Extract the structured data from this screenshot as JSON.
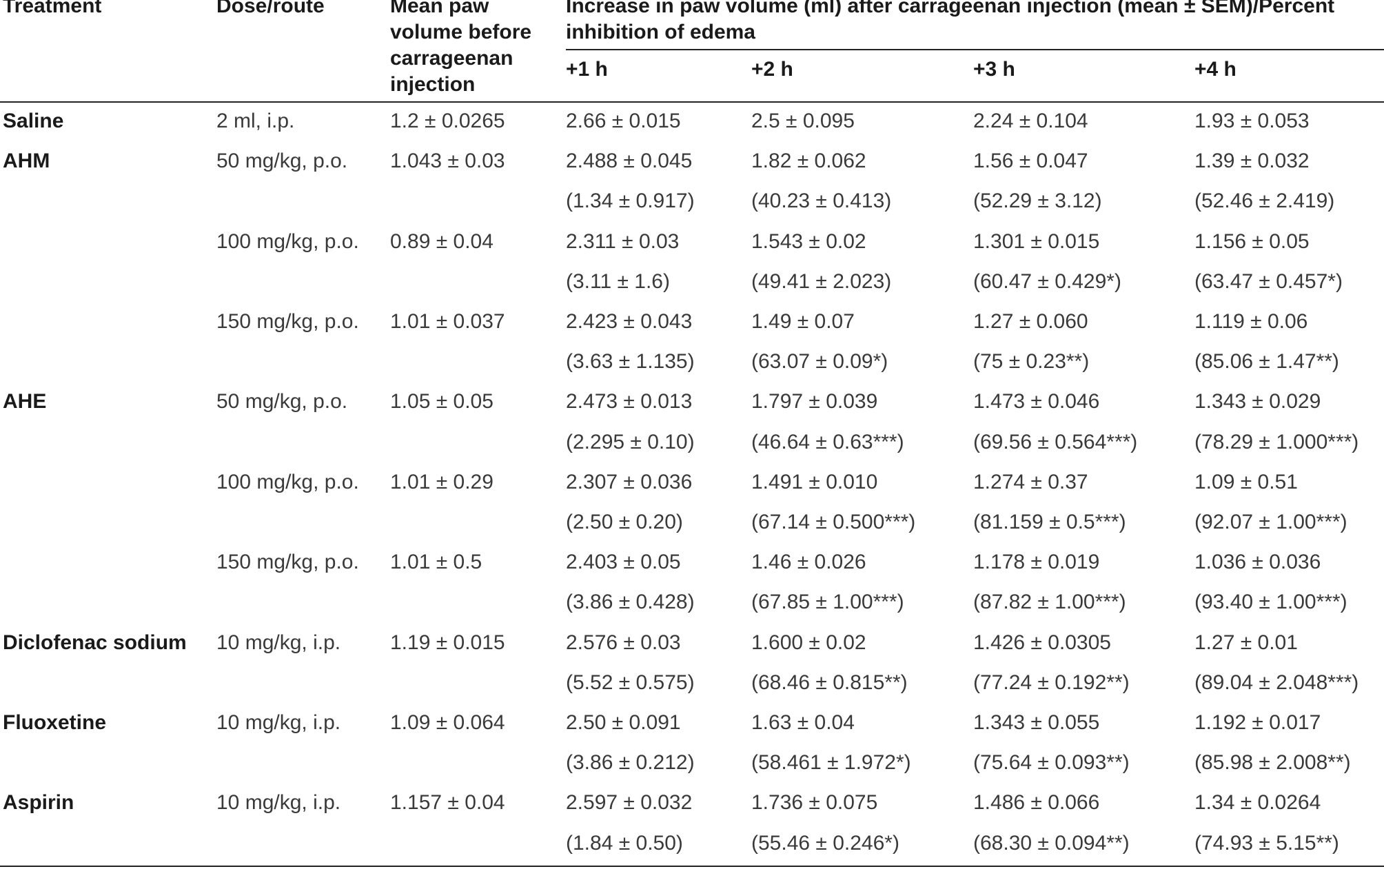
{
  "header": {
    "treatment": "Treatment",
    "dose_route": "Dose/route",
    "mean_paw_volume": "Mean paw volume before carrageenan injection",
    "increase_title": "Increase in paw volume (ml) after carrageenan injection (mean ± SEM)/Percent inhibition of edema",
    "time_points": [
      "+1 h",
      "+2 h",
      "+3 h",
      "+4 h"
    ]
  },
  "rows": [
    {
      "treatment": "Saline",
      "dose": "2 ml, i.p.",
      "baseline": "1.2 ± 0.0265",
      "values": [
        "2.66 ± 0.015",
        "2.5 ± 0.095",
        "2.24 ± 0.104",
        "1.93 ± 0.053"
      ]
    },
    {
      "treatment": "AHM",
      "dose": "50 mg/kg, p.o.",
      "baseline": "1.043 ± 0.03",
      "values": [
        "2.488 ± 0.045",
        "1.82 ± 0.062",
        "1.56 ± 0.047",
        "1.39 ± 0.032"
      ]
    },
    {
      "treatment": "",
      "dose": "",
      "baseline": "",
      "values": [
        "(1.34 ± 0.917)",
        "(40.23 ± 0.413)",
        "(52.29 ± 3.12)",
        "(52.46 ± 2.419)"
      ]
    },
    {
      "treatment": "",
      "dose": "100 mg/kg, p.o.",
      "baseline": "0.89 ± 0.04",
      "values": [
        "2.311 ± 0.03",
        "1.543 ± 0.02",
        "1.301 ± 0.015",
        "1.156 ± 0.05"
      ]
    },
    {
      "treatment": "",
      "dose": "",
      "baseline": "",
      "values": [
        "(3.11 ± 1.6)",
        "(49.41 ± 2.023)",
        "(60.47 ± 0.429*)",
        "(63.47 ± 0.457*)"
      ]
    },
    {
      "treatment": "",
      "dose": "150 mg/kg, p.o.",
      "baseline": "1.01 ± 0.037",
      "values": [
        "2.423 ± 0.043",
        "1.49 ± 0.07",
        "1.27 ± 0.060",
        "1.119 ± 0.06"
      ]
    },
    {
      "treatment": "",
      "dose": "",
      "baseline": "",
      "values": [
        "(3.63 ± 1.135)",
        "(63.07 ± 0.09*)",
        "(75 ± 0.23**)",
        "(85.06 ± 1.47**)"
      ]
    },
    {
      "treatment": "AHE",
      "dose": "50 mg/kg, p.o.",
      "baseline": "1.05 ± 0.05",
      "values": [
        "2.473 ± 0.013",
        "1.797 ± 0.039",
        "1.473 ± 0.046",
        "1.343 ± 0.029"
      ]
    },
    {
      "treatment": "",
      "dose": "",
      "baseline": "",
      "values": [
        "(2.295 ± 0.10)",
        "(46.64 ± 0.63***)",
        "(69.56 ± 0.564***)",
        "(78.29 ± 1.000***)"
      ]
    },
    {
      "treatment": "",
      "dose": "100 mg/kg, p.o.",
      "baseline": "1.01 ± 0.29",
      "values": [
        "2.307 ± 0.036",
        "1.491 ± 0.010",
        "1.274 ± 0.37",
        "1.09 ± 0.51"
      ]
    },
    {
      "treatment": "",
      "dose": "",
      "baseline": "",
      "values": [
        "(2.50 ± 0.20)",
        "(67.14 ± 0.500***)",
        "(81.159 ± 0.5***)",
        "(92.07 ± 1.00***)"
      ]
    },
    {
      "treatment": "",
      "dose": "150 mg/kg, p.o.",
      "baseline": "1.01 ± 0.5",
      "values": [
        "2.403 ± 0.05",
        "1.46 ± 0.026",
        "1.178 ± 0.019",
        "1.036 ± 0.036"
      ]
    },
    {
      "treatment": "",
      "dose": "",
      "baseline": "",
      "values": [
        "(3.86 ± 0.428)",
        "(67.85 ± 1.00***)",
        "(87.82 ± 1.00***)",
        "(93.40 ± 1.00***)"
      ]
    },
    {
      "treatment": "Diclofenac sodium",
      "dose": "10 mg/kg, i.p.",
      "baseline": "1.19 ± 0.015",
      "values": [
        "2.576 ± 0.03",
        "1.600 ± 0.02",
        "1.426 ± 0.0305",
        "1.27 ± 0.01"
      ]
    },
    {
      "treatment": "",
      "dose": "",
      "baseline": "",
      "values": [
        "(5.52 ± 0.575)",
        "(68.46 ± 0.815**)",
        "(77.24 ± 0.192**)",
        "(89.04 ± 2.048***)"
      ]
    },
    {
      "treatment": "Fluoxetine",
      "dose": "10 mg/kg, i.p.",
      "baseline": "1.09 ± 0.064",
      "values": [
        "2.50 ± 0.091",
        "1.63 ± 0.04",
        "1.343 ± 0.055",
        "1.192 ± 0.017"
      ]
    },
    {
      "treatment": "",
      "dose": "",
      "baseline": "",
      "values": [
        "(3.86 ± 0.212)",
        "(58.461 ± 1.972*)",
        "(75.64 ± 0.093**)",
        "(85.98 ± 2.008**)"
      ]
    },
    {
      "treatment": "Aspirin",
      "dose": "10 mg/kg, i.p.",
      "baseline": "1.157 ± 0.04",
      "values": [
        "2.597 ± 0.032",
        "1.736 ± 0.075",
        "1.486 ± 0.066",
        "1.34 ± 0.0264"
      ]
    },
    {
      "treatment": "",
      "dose": "",
      "baseline": "",
      "values": [
        "(1.84 ± 0.50)",
        "(55.46 ± 0.246*)",
        "(68.30 ± 0.094**)",
        "(74.93 ± 5.15**)"
      ]
    }
  ]
}
